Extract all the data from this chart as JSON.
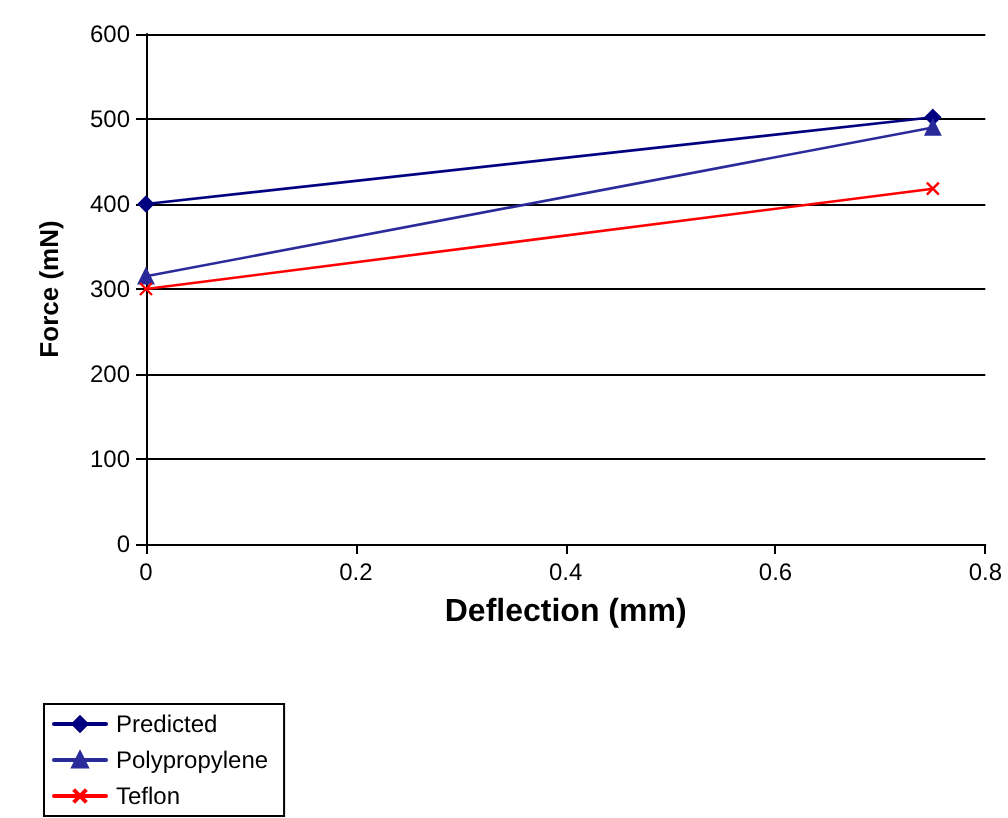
{
  "chart_data": {
    "type": "line",
    "xlabel": "Deflection (mm)",
    "ylabel": "Force (mN)",
    "x": [
      0,
      0.75
    ],
    "xlim": [
      0,
      0.8
    ],
    "xticks": [
      0,
      0.2,
      0.4,
      0.6,
      0.8
    ],
    "ylim": [
      0,
      600
    ],
    "yticks": [
      0,
      100,
      200,
      300,
      400,
      500,
      600
    ],
    "grid": "y",
    "legend": "bottom left",
    "line_style": "solid",
    "series": [
      {
        "name": "Predicted",
        "color": "#000080",
        "marker": "diamond",
        "values": [
          400,
          502
        ]
      },
      {
        "name": "Polypropylene",
        "color": "#2a2a9a",
        "marker": "triangle",
        "values": [
          315,
          490
        ]
      },
      {
        "name": "Teflon",
        "color": "#ff0000",
        "marker": "cross",
        "values": [
          300,
          418
        ]
      }
    ]
  }
}
